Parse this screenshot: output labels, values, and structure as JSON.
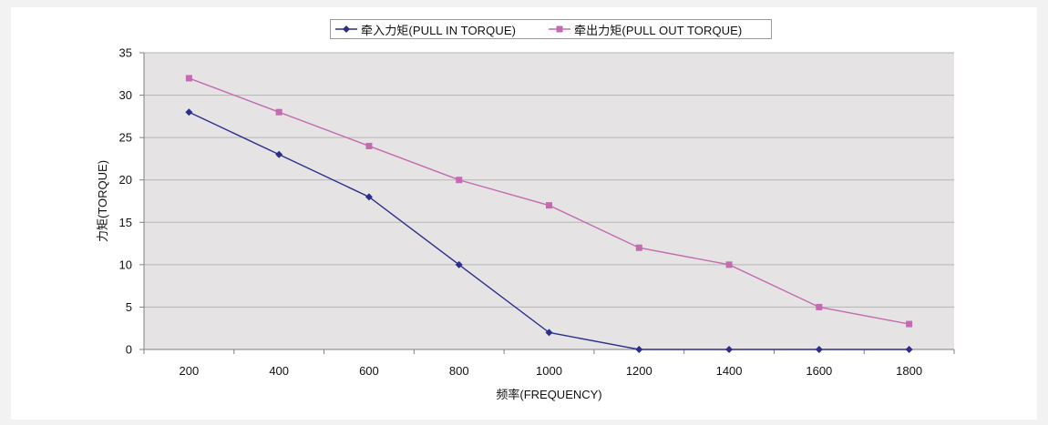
{
  "chart_data": {
    "type": "line",
    "xlabel": "频率(FREQUENCY)",
    "ylabel": "力矩(TORQUE)",
    "x": [
      200,
      400,
      600,
      800,
      1000,
      1200,
      1400,
      1600,
      1800
    ],
    "ylim": [
      0,
      35
    ],
    "yticks": [
      0,
      5,
      10,
      15,
      20,
      25,
      30,
      35
    ],
    "grid": true,
    "legend_position": "top",
    "background": "#e6e3e5",
    "series": [
      {
        "name": "牵入力矩(PULL IN TORQUE)",
        "color": "#2b2f8a",
        "marker": "diamond",
        "values": [
          28,
          23,
          18,
          10,
          2,
          0,
          0,
          0,
          0
        ]
      },
      {
        "name": "牵出力矩(PULL OUT TORQUE)",
        "color": "#c36bb0",
        "marker": "square",
        "values": [
          32,
          28,
          24,
          20,
          17,
          12,
          10,
          5,
          3
        ]
      }
    ]
  }
}
